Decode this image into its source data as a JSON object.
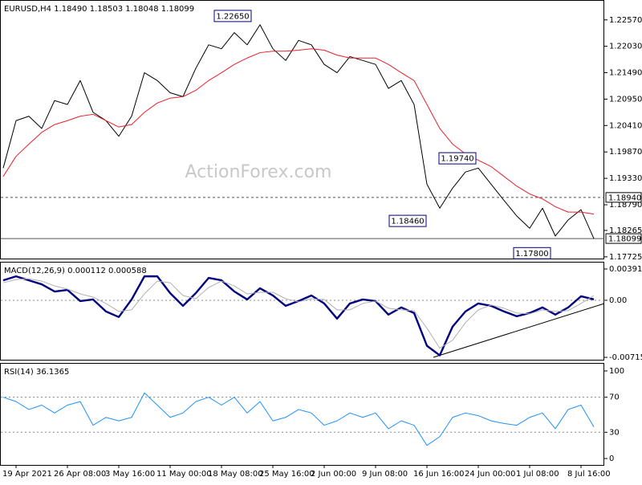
{
  "chart_data": [
    {
      "type": "line",
      "title": "EURUSD,H4 1.18490 1.18503 1.18048 1.18099",
      "watermark": "ActionForex.com",
      "ylim": [
        1.1769,
        1.2296
      ],
      "yticks": [
        {
          "value": 1.2257,
          "label": "1.22570"
        },
        {
          "value": 1.2203,
          "label": "1.22030"
        },
        {
          "value": 1.2149,
          "label": "1.21490"
        },
        {
          "value": 1.2095,
          "label": "1.20950"
        },
        {
          "value": 1.2041,
          "label": "1.20410"
        },
        {
          "value": 1.1987,
          "label": "1.19870"
        },
        {
          "value": 1.1933,
          "label": "1.19330"
        },
        {
          "value": 1.1879,
          "label": "1.18790"
        },
        {
          "value": 1.18265,
          "label": "1.18265"
        },
        {
          "value": 1.17725,
          "label": "1.17725"
        }
      ],
      "series": [
        {
          "color": "#000000",
          "values": [
            1.1954,
            1.2051,
            1.206,
            1.2035,
            1.2092,
            1.2084,
            1.2133,
            1.2068,
            1.2051,
            1.2019,
            1.206,
            1.2149,
            1.2133,
            1.2108,
            1.21,
            1.2158,
            1.2206,
            1.2198,
            1.2231,
            1.2206,
            1.2247,
            1.2198,
            1.2174,
            1.2215,
            1.2206,
            1.2166,
            1.2149,
            1.2182,
            1.2174,
            1.2166,
            1.2117,
            1.2133,
            1.2084,
            1.1921,
            1.1872,
            1.1913,
            1.1946,
            1.1954,
            1.1921,
            1.1888,
            1.1856,
            1.1831,
            1.1872,
            1.1815,
            1.1848,
            1.1869,
            1.18099
          ]
        },
        {
          "color": "#e8202a",
          "values": [
            1.1937,
            1.1978,
            1.2003,
            1.2027,
            1.2043,
            1.2051,
            1.206,
            1.2064,
            1.2051,
            1.2038,
            1.2043,
            1.2068,
            1.2087,
            1.2097,
            1.21,
            1.2113,
            1.2133,
            1.2149,
            1.2166,
            1.2179,
            1.219,
            1.2193,
            1.2193,
            1.2195,
            1.2198,
            1.2195,
            1.2185,
            1.2179,
            1.2179,
            1.2179,
            1.2166,
            1.2149,
            1.2133,
            1.2084,
            1.2035,
            1.2003,
            1.1983,
            1.197,
            1.1957,
            1.1937,
            1.1917,
            1.1901,
            1.1891,
            1.1875,
            1.1864,
            1.1864,
            1.186
          ]
        }
      ],
      "hlines": [
        {
          "value": 1.1894,
          "label": "1.18940",
          "style": "dashed"
        },
        {
          "value": 1.18099,
          "label": "1.18099",
          "style": "solid"
        }
      ],
      "annotations": [
        {
          "value": 1.2265,
          "label": "1.22650"
        },
        {
          "value": 1.1974,
          "label": "1.19740"
        },
        {
          "value": 1.1846,
          "label": "1.18460"
        },
        {
          "value": 1.178,
          "label": "1.17800"
        }
      ]
    },
    {
      "type": "line",
      "title": "MACD(12,26,9) 0.000112 0.000588",
      "ylim": [
        -0.00745,
        0.004722
      ],
      "yticks": [
        0.003917,
        {
          "value": 0,
          "label": "0.00"
        },
        -0.007152
      ],
      "dashed_levels": [
        0
      ],
      "series": [
        {
          "color": "#000080",
          "width": 2.4,
          "values": [
            0.0025,
            0.003,
            0.0025,
            0.002,
            0.0011,
            0.0013,
            -0.0001,
            0.0001,
            -0.0014,
            -0.0021,
            0.0001,
            0.003,
            0.003,
            0.0009,
            -0.0007,
            0.0009,
            0.0028,
            0.0025,
            0.0011,
            0.0001,
            0.0015,
            0.0006,
            -0.0007,
            -0.0001,
            0.0006,
            -0.0004,
            -0.0023,
            -0.0004,
            0.0001,
            -0.0001,
            -0.0018,
            -0.0009,
            -0.0016,
            -0.0057,
            -0.0069,
            -0.0033,
            -0.0014,
            -0.0004,
            -0.0007,
            -0.0014,
            -0.002,
            -0.0016,
            -0.0009,
            -0.0018,
            -0.0009,
            0.0005,
            0.000112
          ]
        },
        {
          "color": "#b0b0b0",
          "width": 1,
          "values": [
            0.0022,
            0.0026,
            0.0027,
            0.0024,
            0.0018,
            0.0014,
            0.0008,
            0.0004,
            -0.0004,
            -0.0014,
            -0.0012,
            0.0008,
            0.0024,
            0.0022,
            0.0006,
            0.0002,
            0.0016,
            0.0024,
            0.0018,
            0.0008,
            0.001,
            0.001,
            0.0002,
            -0.0002,
            0.0002,
            0.0001,
            -0.0012,
            -0.0012,
            -0.0004,
            -0.0001,
            -0.001,
            -0.0012,
            -0.0013,
            -0.0035,
            -0.006,
            -0.005,
            -0.0028,
            -0.0012,
            -0.0006,
            -0.001,
            -0.0016,
            -0.0017,
            -0.0012,
            -0.0014,
            -0.0013,
            -0.0004,
            0.000588
          ]
        }
      ]
    },
    {
      "type": "line",
      "title": "RSI(14) 36.1365",
      "ylim": [
        -7.3,
        108.2
      ],
      "yticks": [
        100,
        70,
        30,
        0
      ],
      "dashed_levels": [
        70,
        30
      ],
      "categories": [
        null,
        "19 Apr 2021",
        null,
        null,
        null,
        "26 Apr 08:00",
        null,
        null,
        null,
        "3 May 16:00",
        null,
        null,
        null,
        "11 May 00:00",
        null,
        null,
        null,
        "18 May 08:00",
        null,
        null,
        null,
        "25 May 16:00",
        null,
        null,
        null,
        "2 Jun 00:00",
        null,
        null,
        null,
        "9 Jun 08:00",
        null,
        null,
        null,
        "16 Jun 16:00",
        null,
        null,
        null,
        "24 Jun 00:00",
        null,
        null,
        null,
        "1 Jul 08:00",
        null,
        null,
        null,
        "8 Jul 16:00",
        null
      ],
      "series": [
        {
          "color": "#1e90ff",
          "width": 1,
          "values": [
            70,
            65,
            56,
            61,
            52,
            61,
            65,
            38,
            47,
            43,
            47,
            75,
            61,
            47,
            52,
            65,
            70,
            61,
            70,
            52,
            65,
            43,
            47,
            56,
            52,
            38,
            43,
            52,
            47,
            52,
            34,
            43,
            38,
            15,
            25,
            47,
            52,
            49,
            43,
            40,
            38,
            47,
            52,
            34,
            56,
            61,
            36.1365
          ]
        }
      ]
    }
  ]
}
